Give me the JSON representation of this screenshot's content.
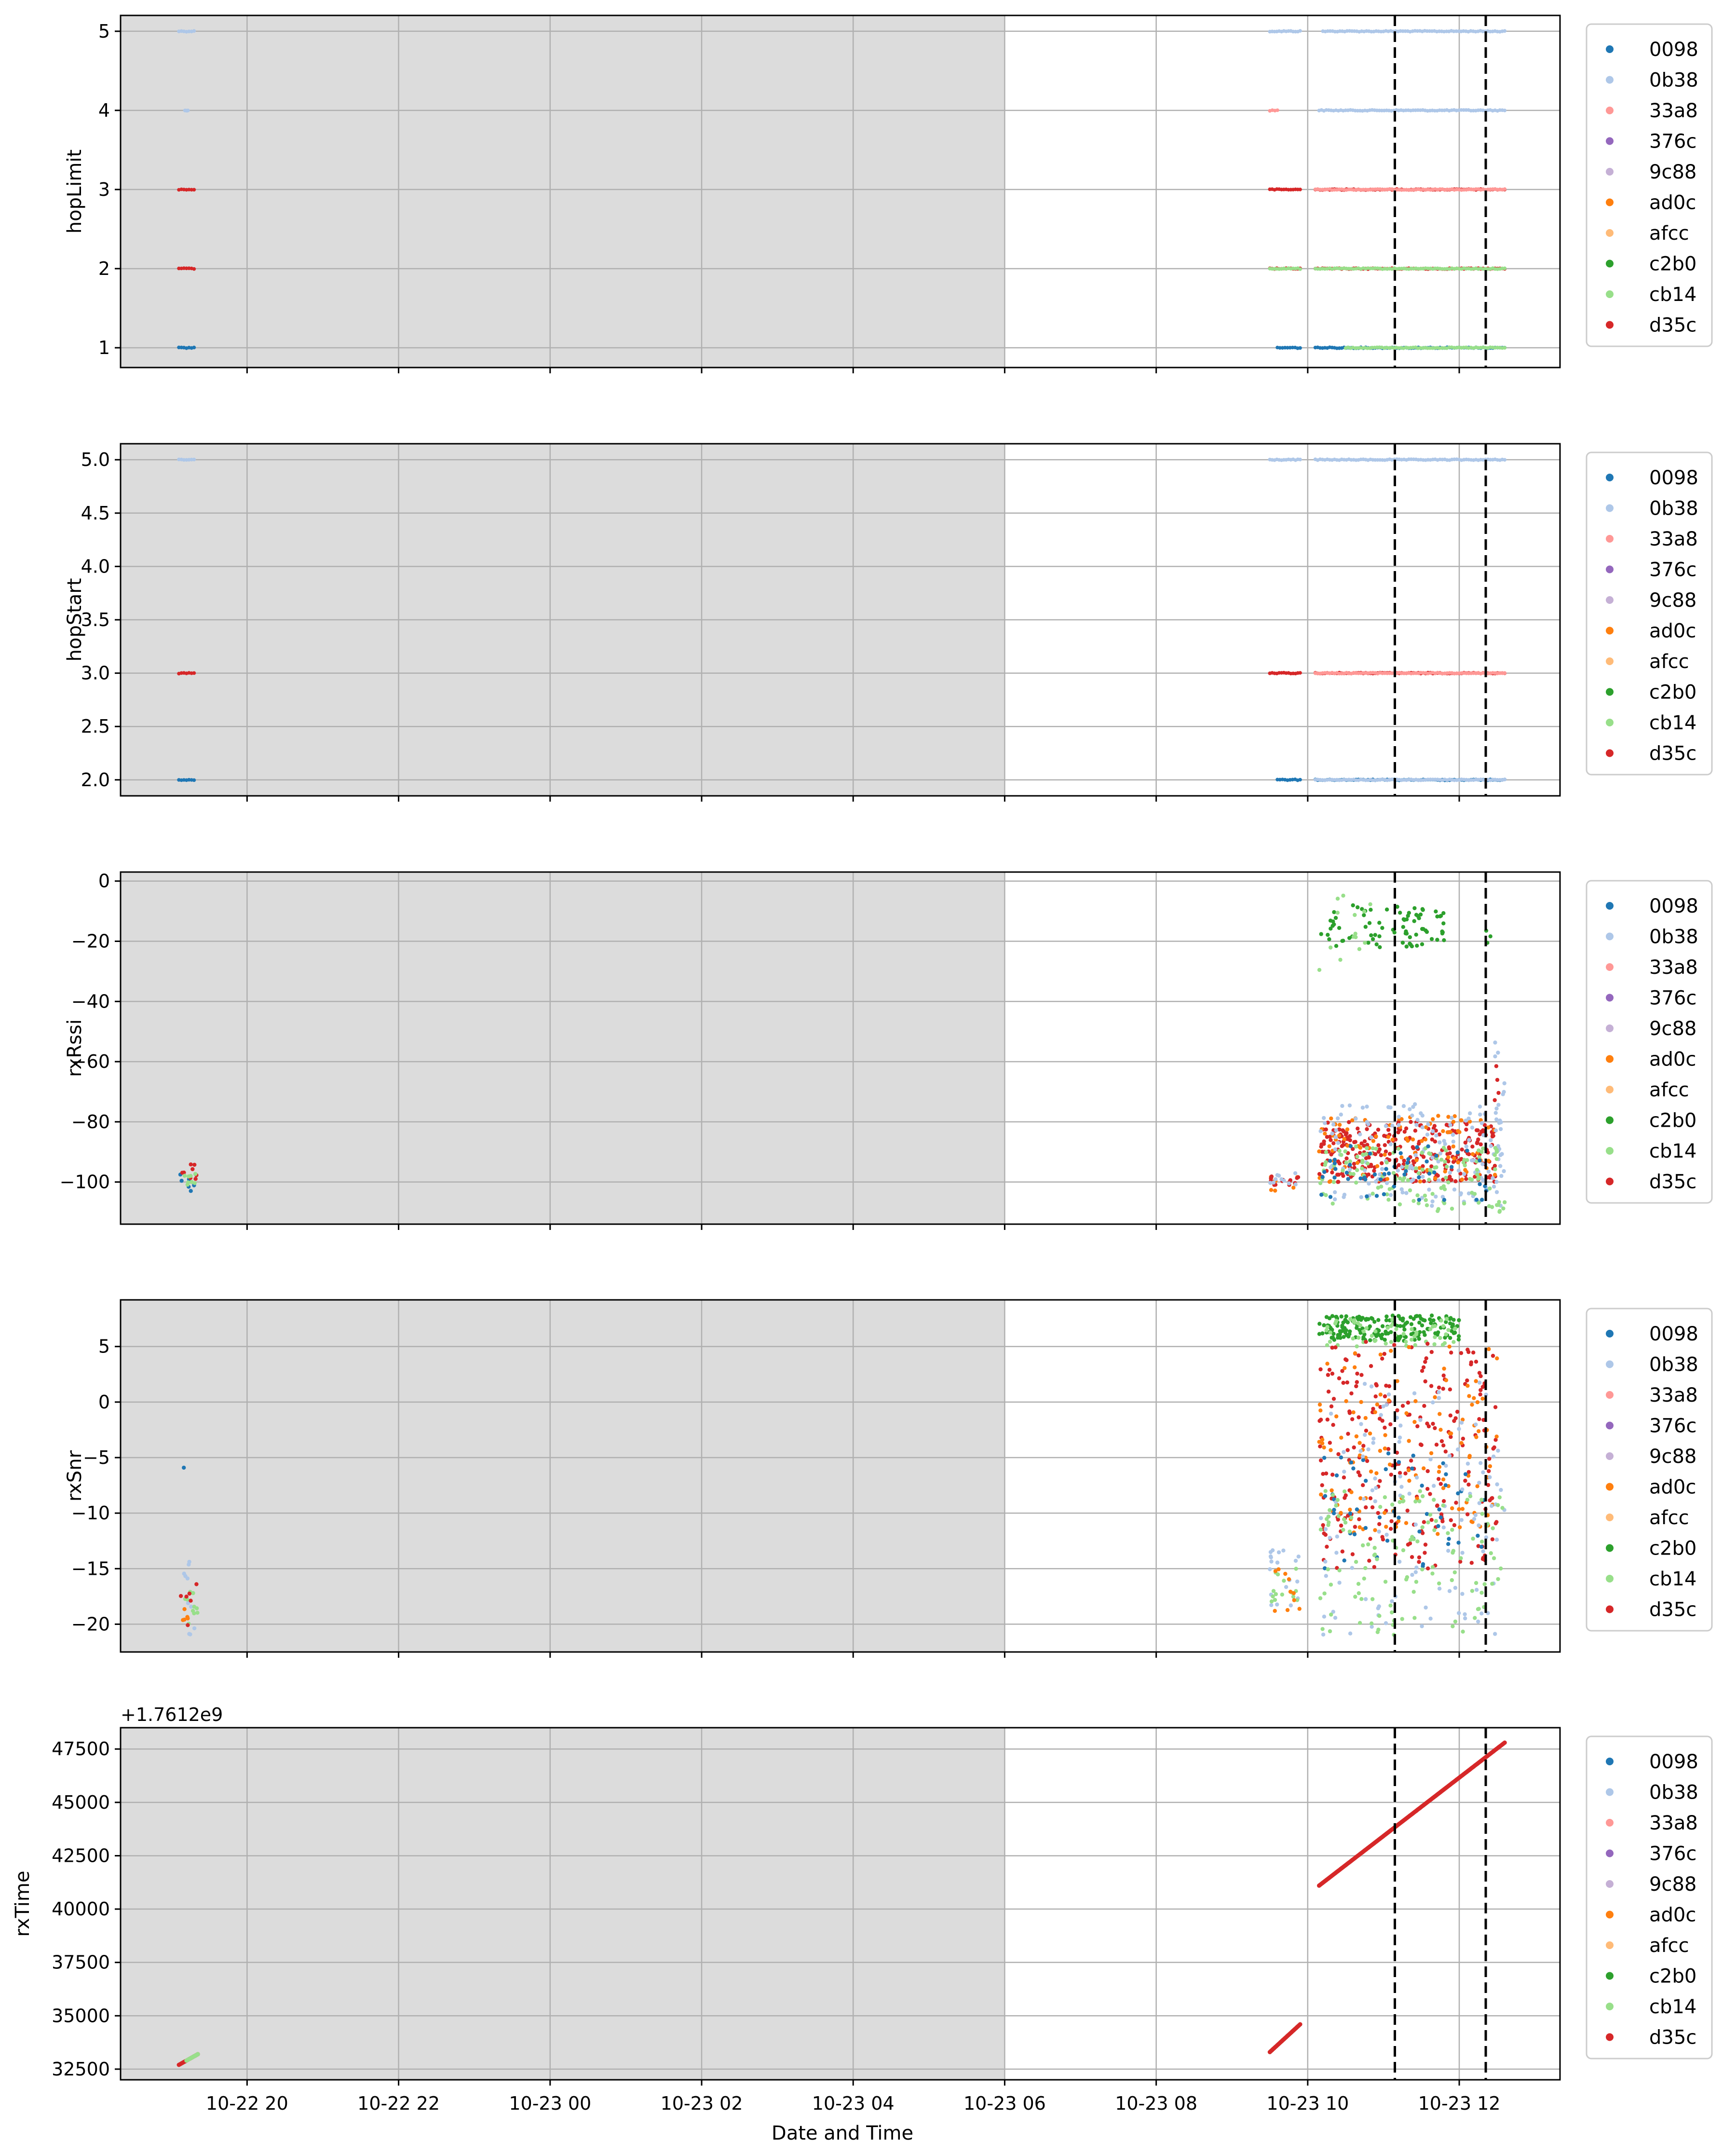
{
  "figure": {
    "xlabel": "Date and Time",
    "x_ticks": [
      "10-22 20",
      "10-22 22",
      "10-23 00",
      "10-23 02",
      "10-23 04",
      "10-23 06",
      "10-23 08",
      "10-23 10",
      "10-23 12"
    ],
    "x_tick_hours": [
      20,
      22,
      24,
      26,
      28,
      30,
      32,
      34,
      36
    ],
    "xlim_hours": [
      18.33,
      37.33
    ],
    "shaded_span_hours": [
      18.33,
      30.0
    ],
    "shaded_color": "#dcdcdc",
    "vlines_hours": [
      35.15,
      36.35
    ],
    "legend": [
      {
        "name": "0098",
        "color": "#1f77b4"
      },
      {
        "name": "0b38",
        "color": "#aec7e8"
      },
      {
        "name": "33a8",
        "color": "#ff9896"
      },
      {
        "name": "376c",
        "color": "#9467bd"
      },
      {
        "name": "9c88",
        "color": "#c5b0d5"
      },
      {
        "name": "ad0c",
        "color": "#ff7f0e"
      },
      {
        "name": "afcc",
        "color": "#ffbb78"
      },
      {
        "name": "c2b0",
        "color": "#2ca02c"
      },
      {
        "name": "cb14",
        "color": "#98df8a"
      },
      {
        "name": "d35c",
        "color": "#d62728"
      }
    ]
  },
  "chart_data": [
    {
      "type": "scatter",
      "ylabel": "hopLimit",
      "ylim": [
        0.75,
        5.2
      ],
      "y_ticks": [
        "1",
        "2",
        "3",
        "4",
        "5"
      ],
      "y_tick_values": [
        1,
        2,
        3,
        4,
        5
      ],
      "bands": [
        {
          "y": 5,
          "series": "0b38",
          "segments": [
            [
              19.1,
              19.3
            ],
            [
              33.5,
              33.9
            ],
            [
              34.2,
              36.6
            ]
          ]
        },
        {
          "y": 4,
          "series": "0b38",
          "segments": [
            [
              19.18,
              19.22
            ],
            [
              34.15,
              36.6
            ]
          ]
        },
        {
          "y": 4,
          "series": "33a8",
          "segments": [
            [
              33.5,
              33.6
            ]
          ]
        },
        {
          "y": 3,
          "series": "d35c",
          "segments": [
            [
              19.1,
              19.3
            ],
            [
              33.5,
              33.9
            ],
            [
              34.1,
              36.6
            ]
          ]
        },
        {
          "y": 3,
          "series": "33a8",
          "segments": [
            [
              34.1,
              36.6
            ]
          ]
        },
        {
          "y": 2,
          "series": "d35c",
          "segments": [
            [
              19.1,
              19.3
            ],
            [
              33.5,
              33.9
            ],
            [
              34.1,
              36.6
            ]
          ]
        },
        {
          "y": 2,
          "series": "cb14",
          "segments": [
            [
              33.5,
              33.9
            ],
            [
              34.1,
              36.6
            ]
          ]
        },
        {
          "y": 1,
          "series": "0098",
          "segments": [
            [
              19.1,
              19.3
            ],
            [
              33.6,
              33.9
            ],
            [
              34.1,
              36.6
            ]
          ]
        },
        {
          "y": 1,
          "series": "cb14",
          "segments": [
            [
              34.5,
              36.6
            ]
          ]
        }
      ]
    },
    {
      "type": "scatter",
      "ylabel": "hopStart",
      "ylim": [
        1.85,
        5.15
      ],
      "y_ticks": [
        "2.0",
        "2.5",
        "3.0",
        "3.5",
        "4.0",
        "4.5",
        "5.0"
      ],
      "y_tick_values": [
        2.0,
        2.5,
        3.0,
        3.5,
        4.0,
        4.5,
        5.0
      ],
      "bands": [
        {
          "y": 5,
          "series": "0b38",
          "segments": [
            [
              19.1,
              19.3
            ],
            [
              33.5,
              33.9
            ],
            [
              34.1,
              36.6
            ]
          ]
        },
        {
          "y": 3,
          "series": "d35c",
          "segments": [
            [
              19.1,
              19.3
            ],
            [
              33.5,
              33.9
            ],
            [
              34.1,
              36.6
            ]
          ]
        },
        {
          "y": 3,
          "series": "33a8",
          "segments": [
            [
              34.1,
              36.6
            ]
          ]
        },
        {
          "y": 2,
          "series": "0098",
          "segments": [
            [
              19.1,
              19.3
            ],
            [
              33.6,
              33.9
            ],
            [
              34.1,
              36.6
            ]
          ]
        },
        {
          "y": 2,
          "series": "0b38",
          "segments": [
            [
              34.1,
              36.6
            ]
          ]
        }
      ]
    },
    {
      "type": "scatter",
      "ylabel": "rxRssi",
      "ylim": [
        -114,
        3
      ],
      "y_ticks": [
        "0",
        "−20",
        "−40",
        "−60",
        "−80",
        "−100"
      ],
      "y_tick_values": [
        0,
        -20,
        -40,
        -60,
        -80,
        -100
      ],
      "clusters": [
        {
          "series": "0098",
          "x": [
            19.1,
            19.35
          ],
          "y": [
            -103,
            -97
          ],
          "n": 6
        },
        {
          "series": "d35c",
          "x": [
            19.1,
            19.35
          ],
          "y": [
            -99,
            -94
          ],
          "n": 8
        },
        {
          "series": "cb14",
          "x": [
            19.1,
            19.35
          ],
          "y": [
            -101,
            -97
          ],
          "n": 8
        },
        {
          "series": "ad0c",
          "x": [
            33.5,
            33.9
          ],
          "y": [
            -103,
            -97
          ],
          "n": 8
        },
        {
          "series": "d35c",
          "x": [
            33.5,
            33.9
          ],
          "y": [
            -101,
            -98
          ],
          "n": 14
        },
        {
          "series": "0b38",
          "x": [
            33.5,
            33.9
          ],
          "y": [
            -101,
            -97
          ],
          "n": 10
        },
        {
          "series": "c2b0",
          "x": [
            34.15,
            35.8
          ],
          "y": [
            -22,
            -8
          ],
          "n": 80
        },
        {
          "series": "cb14",
          "x": [
            34.15,
            35.0
          ],
          "y": [
            -30,
            -2
          ],
          "n": 14
        },
        {
          "series": "c2b0",
          "x": [
            36.3,
            36.45
          ],
          "y": [
            -22,
            -16
          ],
          "n": 3
        },
        {
          "series": "d35c",
          "x": [
            34.15,
            36.5
          ],
          "y": [
            -100,
            -80
          ],
          "n": 300
        },
        {
          "series": "ad0c",
          "x": [
            34.15,
            36.5
          ],
          "y": [
            -100,
            -78
          ],
          "n": 90
        },
        {
          "series": "0b38",
          "x": [
            34.15,
            36.6
          ],
          "y": [
            -108,
            -74
          ],
          "n": 150
        },
        {
          "series": "cb14",
          "x": [
            34.15,
            36.6
          ],
          "y": [
            -110,
            -88
          ],
          "n": 130
        },
        {
          "series": "0098",
          "x": [
            34.15,
            36.4
          ],
          "y": [
            -106,
            -88
          ],
          "n": 50
        },
        {
          "series": "0b38",
          "x": [
            36.45,
            36.6
          ],
          "y": [
            -82,
            -50
          ],
          "n": 10
        },
        {
          "series": "d35c",
          "x": [
            36.45,
            36.55
          ],
          "y": [
            -75,
            -58
          ],
          "n": 4
        }
      ]
    },
    {
      "type": "scatter",
      "ylabel": "rxSnr",
      "ylim": [
        -22.5,
        9.2
      ],
      "y_ticks": [
        "5",
        "0",
        "−5",
        "−10",
        "−15",
        "−20"
      ],
      "y_tick_values": [
        5,
        0,
        -5,
        -10,
        -15,
        -20
      ],
      "clusters": [
        {
          "series": "0098",
          "x": [
            19.15,
            19.2
          ],
          "y": [
            -6,
            -5.5
          ],
          "n": 1
        },
        {
          "series": "0b38",
          "x": [
            19.1,
            19.35
          ],
          "y": [
            -21,
            -14
          ],
          "n": 10
        },
        {
          "series": "cb14",
          "x": [
            19.1,
            19.35
          ],
          "y": [
            -20,
            -17
          ],
          "n": 10
        },
        {
          "series": "ad0c",
          "x": [
            19.1,
            19.35
          ],
          "y": [
            -20,
            -18
          ],
          "n": 5
        },
        {
          "series": "d35c",
          "x": [
            19.1,
            19.35
          ],
          "y": [
            -20.5,
            -16
          ],
          "n": 6
        },
        {
          "series": "0b38",
          "x": [
            33.5,
            33.9
          ],
          "y": [
            -19,
            -13
          ],
          "n": 20
        },
        {
          "series": "cb14",
          "x": [
            33.5,
            33.9
          ],
          "y": [
            -18,
            -15
          ],
          "n": 14
        },
        {
          "series": "ad0c",
          "x": [
            33.5,
            33.9
          ],
          "y": [
            -19.5,
            -15
          ],
          "n": 10
        },
        {
          "series": "c2b0",
          "x": [
            34.15,
            36.0
          ],
          "y": [
            5.5,
            7.8
          ],
          "n": 180
        },
        {
          "series": "cb14",
          "x": [
            34.15,
            36.0
          ],
          "y": [
            5,
            7.5
          ],
          "n": 60
        },
        {
          "series": "d35c",
          "x": [
            34.15,
            36.5
          ],
          "y": [
            -15,
            5.5
          ],
          "n": 250
        },
        {
          "series": "ad0c",
          "x": [
            34.15,
            36.5
          ],
          "y": [
            -12,
            5
          ],
          "n": 120
        },
        {
          "series": "0098",
          "x": [
            34.15,
            36.4
          ],
          "y": [
            -15,
            -4
          ],
          "n": 50
        },
        {
          "series": "0b38",
          "x": [
            34.15,
            36.6
          ],
          "y": [
            -21,
            2
          ],
          "n": 120
        },
        {
          "series": "cb14",
          "x": [
            34.15,
            36.6
          ],
          "y": [
            -21,
            -8
          ],
          "n": 120
        }
      ]
    },
    {
      "type": "scatter",
      "ylabel": "rxTime",
      "offset_label": "+1.7612e9",
      "ylim": [
        32000,
        48500
      ],
      "y_ticks": [
        "47500",
        "45000",
        "42500",
        "40000",
        "37500",
        "35000",
        "32500"
      ],
      "y_tick_values": [
        47500,
        45000,
        42500,
        40000,
        37500,
        35000,
        32500
      ],
      "lines": [
        {
          "series": "d35c",
          "x": [
            19.1,
            19.35
          ],
          "y": [
            32700,
            33200
          ]
        },
        {
          "series": "cb14",
          "x": [
            19.2,
            19.35
          ],
          "y": [
            32900,
            33200
          ]
        },
        {
          "series": "cb14",
          "x": [
            33.5,
            33.9
          ],
          "y": [
            33300,
            34600
          ]
        },
        {
          "series": "d35c",
          "x": [
            33.5,
            33.9
          ],
          "y": [
            33300,
            34600
          ]
        },
        {
          "series": "d35c",
          "x": [
            34.15,
            36.6
          ],
          "y": [
            41100,
            47800
          ]
        }
      ]
    }
  ]
}
